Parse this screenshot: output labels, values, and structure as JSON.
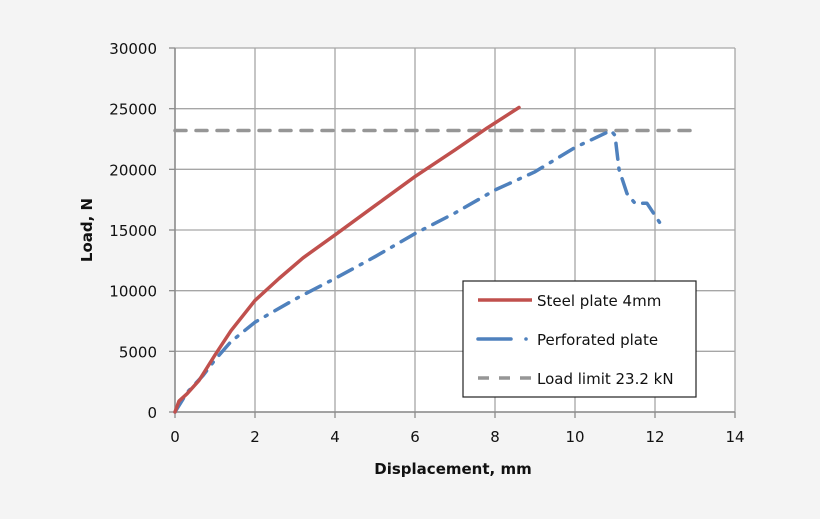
{
  "chart_data": {
    "type": "line",
    "title": "",
    "xlabel": "Displacement, mm",
    "ylabel": "Load, N",
    "xlim": [
      0,
      14
    ],
    "ylim": [
      0,
      30000
    ],
    "x_ticks": [
      0,
      2,
      4,
      6,
      8,
      10,
      12,
      14
    ],
    "y_ticks": [
      0,
      5000,
      10000,
      15000,
      20000,
      25000,
      30000
    ],
    "grid": true,
    "legend_position": "lower-right inside plot",
    "series": [
      {
        "name": "Steel plate 4mm",
        "color": "#c0504d",
        "style": "solid",
        "x": [
          0,
          0.1,
          0.3,
          0.6,
          1.0,
          1.4,
          2.0,
          2.6,
          3.2,
          4.0,
          5.0,
          6.0,
          7.0,
          7.8,
          8.6
        ],
        "y": [
          0,
          900,
          1500,
          2600,
          4700,
          6700,
          9200,
          11000,
          12700,
          14600,
          17000,
          19400,
          21600,
          23400,
          25100
        ]
      },
      {
        "name": "Perforated plate",
        "color": "#4f81bd",
        "style": "dash-dot",
        "x": [
          0,
          0.3,
          0.7,
          1.0,
          1.4,
          2.0,
          3.0,
          4.0,
          5.0,
          6.0,
          7.0,
          8.0,
          9.0,
          10.0,
          10.9,
          11.0,
          11.1,
          11.3,
          11.5,
          11.8,
          12.0,
          12.2
        ],
        "y": [
          0,
          1600,
          3000,
          4300,
          5800,
          7400,
          9300,
          11000,
          12800,
          14700,
          16400,
          18300,
          19800,
          21800,
          23200,
          22800,
          20000,
          18000,
          17200,
          17200,
          16200,
          15200
        ]
      },
      {
        "name": "Load limit 23.2 kN",
        "color": "#969696",
        "style": "dashed",
        "x": [
          0,
          13
        ],
        "y": [
          23200,
          23200
        ]
      }
    ]
  },
  "legend": {
    "items": [
      {
        "label": "Steel plate 4mm"
      },
      {
        "label": "Perforated plate"
      },
      {
        "label": "Load limit 23.2 kN"
      }
    ]
  },
  "axes": {
    "x_title": "Displacement, mm",
    "y_title": "Load, N",
    "x_tick_labels": [
      "0",
      "2",
      "4",
      "6",
      "8",
      "10",
      "12",
      "14"
    ],
    "y_tick_labels": [
      "0",
      "5000",
      "10000",
      "15000",
      "20000",
      "25000",
      "30000"
    ]
  }
}
